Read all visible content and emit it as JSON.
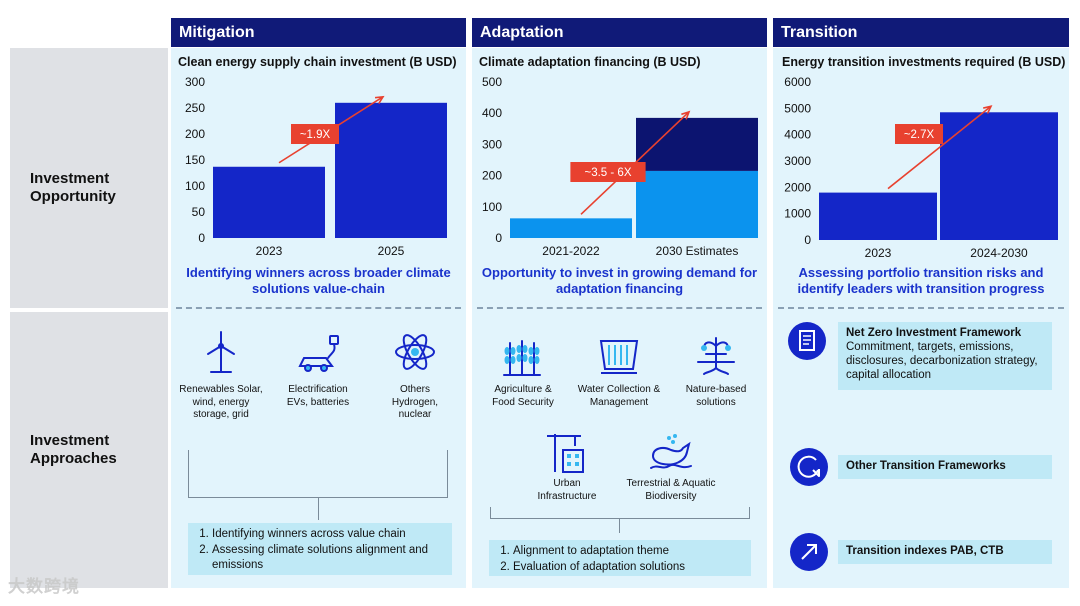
{
  "row_labels": {
    "opportunity": "Investment Opportunity",
    "approaches": "Investment Approaches"
  },
  "columns": {
    "mitigation": {
      "header": "Mitigation",
      "subtitle": "Identifying winners across broader climate solutions value-chain",
      "icons": [
        {
          "icon": "wind-turbine-icon",
          "label": "Renewables Solar, wind, energy storage, grid"
        },
        {
          "icon": "electric-car-icon",
          "label": "Electrification EVs, batteries"
        },
        {
          "icon": "atom-icon",
          "label": "Others Hydrogen, nuclear"
        }
      ],
      "notes": [
        "Identifying winners across value chain",
        "Assessing climate solutions alignment and emissions"
      ]
    },
    "adaptation": {
      "header": "Adaptation",
      "subtitle": "Opportunity to invest in growing demand for adaptation financing",
      "icons": [
        {
          "icon": "wheat-icon",
          "label": "Agriculture & Food Security"
        },
        {
          "icon": "dam-icon",
          "label": "Water Collection & Management"
        },
        {
          "icon": "tree-roots-icon",
          "label": "Nature-based solutions"
        },
        {
          "icon": "crane-building-icon",
          "label": "Urban Infrastructure"
        },
        {
          "icon": "whale-icon",
          "label": "Terrestrial & Aquatic Biodiversity"
        }
      ],
      "notes": [
        "Alignment to adaptation theme",
        "Evaluation of adaptation solutions"
      ]
    },
    "transition": {
      "header": "Transition",
      "subtitle": "Assessing portfolio transition risks and identify leaders with transition progress",
      "items": [
        {
          "icon": "document-icon",
          "title": "Net Zero Investment Framework",
          "text": "Commitment, targets, emissions, disclosures, decarbonization strategy, capital allocation"
        },
        {
          "icon": "circular-arrow-icon",
          "title": "Other Transition Frameworks",
          "text": ""
        },
        {
          "icon": "arrow-up-right-icon",
          "title": "Transition indexes PAB, CTB",
          "text": ""
        }
      ]
    }
  },
  "colors": {
    "header": "#101a78",
    "bar": "#1426c8",
    "bar_light": "#0b93ee",
    "bar_dark": "#0c1470",
    "arrow": "#e8412f",
    "label_bg": "#e8412f",
    "panel": "#e2f4fc",
    "note": "#bfe9f6",
    "accent_text": "#1a33cc"
  },
  "chart_data": [
    {
      "type": "bar",
      "title": "Clean energy supply chain investment (B USD)",
      "categories": [
        "2023",
        "2025"
      ],
      "values": [
        137,
        260
      ],
      "ylim": [
        0,
        300
      ],
      "yticks": [
        0,
        50,
        100,
        150,
        200,
        250,
        300
      ],
      "annotation": "~1.9X"
    },
    {
      "type": "bar",
      "title": "Climate adaptation financing (B USD)",
      "categories": [
        "2021-2022",
        "2030 Estimates"
      ],
      "series": [
        {
          "name": "base",
          "values": [
            63,
            215
          ]
        },
        {
          "name": "upper",
          "values": [
            0,
            170
          ]
        }
      ],
      "ylim": [
        0,
        500
      ],
      "yticks": [
        0,
        100,
        200,
        300,
        400,
        500
      ],
      "annotation": "~3.5 - 6X"
    },
    {
      "type": "bar",
      "title": "Energy transition investments required (B USD)",
      "categories": [
        "2023",
        "2024-2030"
      ],
      "values": [
        1800,
        4850
      ],
      "ylim": [
        0,
        6000
      ],
      "yticks": [
        0,
        1000,
        2000,
        3000,
        4000,
        5000,
        6000
      ],
      "annotation": "~2.7X"
    }
  ],
  "watermark": "大数跨境"
}
